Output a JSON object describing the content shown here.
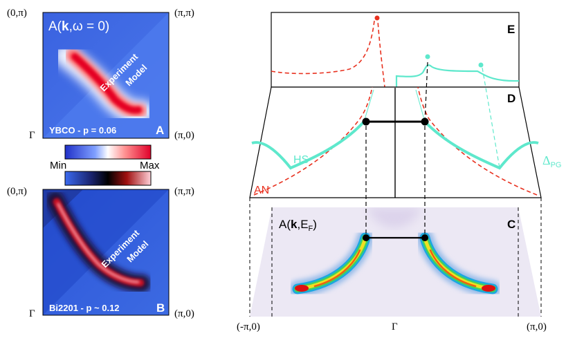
{
  "left": {
    "corner_top_left": "(0,π)",
    "corner_top_right": "(π,π)",
    "corner_bottom_left": "Γ",
    "corner_bottom_right": "(π,0)",
    "panel_a": {
      "title_prefix": "A(",
      "title_k": "k",
      "title_suffix": ",ω = 0)",
      "label_experiment": "Experiment",
      "label_model": "Model",
      "caption": "YBCO - p = 0.06",
      "letter": "A"
    },
    "panel_b": {
      "label_experiment": "Experiment",
      "label_model": "Model",
      "caption": "Bi2201 - p ~ 0.12",
      "letter": "B"
    },
    "colorbar": {
      "min_label": "Min",
      "max_label": "Max"
    }
  },
  "right": {
    "panel_e": {
      "letter": "E"
    },
    "panel_d": {
      "letter": "D",
      "hs_label": "HS",
      "an_label": "AN",
      "pg_label": "Δ",
      "pg_sub": "PG"
    },
    "panel_c": {
      "letter": "C",
      "title_prefix": "A(",
      "title_k": "k",
      "title_mid": ",E",
      "title_sub": "F",
      "title_suffix": ")"
    },
    "x_axis": {
      "left": "(-π,0)",
      "center": "Γ",
      "right": "(π,0)"
    }
  },
  "colors": {
    "red_dash": "#e8311f",
    "teal": "#5ee8cc",
    "map_blue": "#3f6fe0",
    "black": "#000000"
  }
}
